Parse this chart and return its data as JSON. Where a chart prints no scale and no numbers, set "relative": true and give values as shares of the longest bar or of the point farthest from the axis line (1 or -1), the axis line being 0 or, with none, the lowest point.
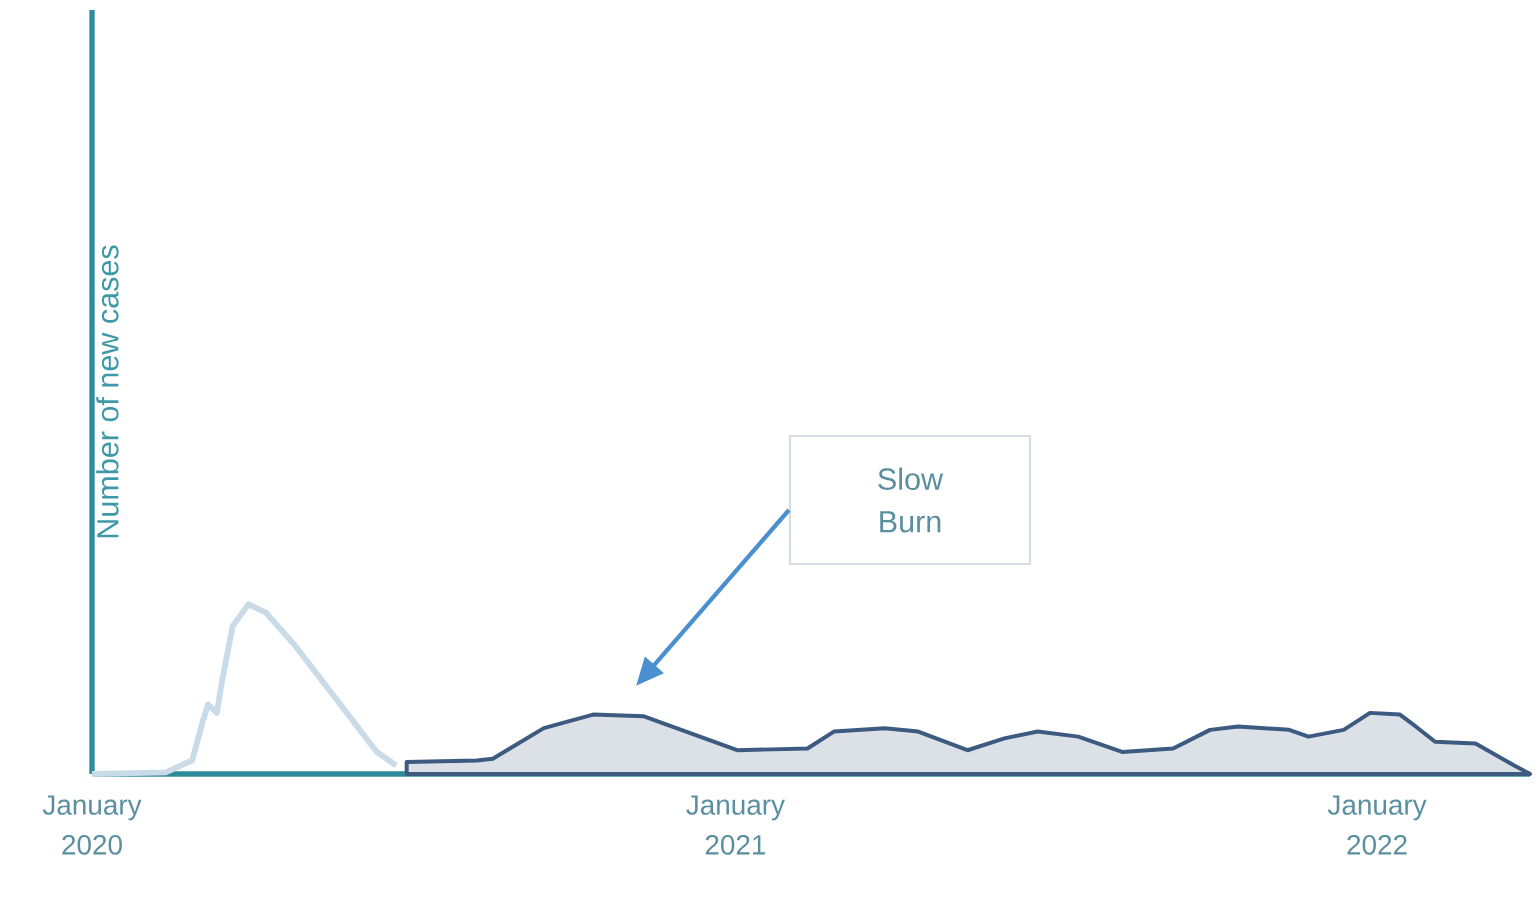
{
  "chart_data": {
    "type": "area",
    "relative": true,
    "ylabel": "Number of new cases",
    "xlim": [
      "2020-01-01",
      "2022-03-29"
    ],
    "xticks": [
      {
        "value": "2020-01-01",
        "label": "January 2020"
      },
      {
        "value": "2021-01-01",
        "label": "January 2021"
      },
      {
        "value": "2022-01-01",
        "label": "January 2022"
      }
    ],
    "grid": false,
    "marker": "none",
    "line_style": "solid",
    "series": [
      {
        "type": "line",
        "color": "#c8dbe6",
        "x": [
          "2020-01-01",
          "2020-02-12",
          "2020-02-27",
          "2020-03-04",
          "2020-03-07",
          "2020-03-12",
          "2020-03-15",
          "2020-03-21",
          "2020-03-30",
          "2020-04-09",
          "2020-04-26",
          "2020-05-19",
          "2020-06-11",
          "2020-06-22"
        ],
        "values": [
          0,
          0.01,
          0.08,
          0.31,
          0.41,
          0.36,
          0.55,
          0.87,
          1.0,
          0.95,
          0.75,
          0.44,
          0.13,
          0.05
        ]
      },
      {
        "color": "#3d5a80",
        "x": [
          "2020-06-28",
          "2020-08-07",
          "2020-08-16",
          "2020-09-14",
          "2020-10-12",
          "2020-11-10",
          "2021-01-02",
          "2021-02-11",
          "2021-02-26",
          "2021-03-27",
          "2021-04-15",
          "2021-05-13",
          "2021-06-03",
          "2021-06-22",
          "2021-07-15",
          "2021-08-09",
          "2021-09-07",
          "2021-09-28",
          "2021-10-14",
          "2021-11-12",
          "2021-11-23",
          "2021-12-13",
          "2021-12-28",
          "2022-01-14",
          "2022-01-23",
          "2022-02-03",
          "2022-02-26",
          "2022-03-20",
          "2022-03-29"
        ],
        "values": [
          0.07,
          0.08,
          0.09,
          0.27,
          0.35,
          0.34,
          0.14,
          0.15,
          0.25,
          0.27,
          0.25,
          0.14,
          0.21,
          0.25,
          0.22,
          0.13,
          0.15,
          0.26,
          0.28,
          0.26,
          0.22,
          0.26,
          0.36,
          0.35,
          0.28,
          0.19,
          0.18,
          0.05,
          0
        ]
      }
    ],
    "annotations": [
      "Slow Burn"
    ]
  }
}
